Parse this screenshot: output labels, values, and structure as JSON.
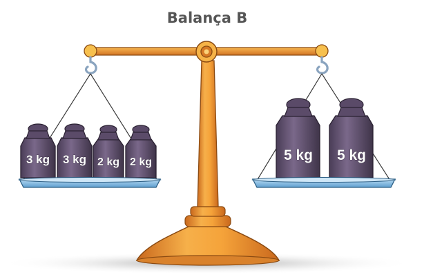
{
  "title": "Balança B",
  "left_pan": {
    "weights": [
      {
        "label": "3 kg"
      },
      {
        "label": "3 kg"
      },
      {
        "label": "2 kg"
      },
      {
        "label": "2 kg"
      }
    ]
  },
  "right_pan": {
    "weights": [
      {
        "label": "5 kg"
      },
      {
        "label": "5 kg"
      }
    ]
  },
  "colors": {
    "brass": "#f0a33a",
    "brass_dark": "#b5621a",
    "weight": "#6b5a78",
    "weight_dark": "#3e3349",
    "pan": "#8ec3e8",
    "title": "#555555"
  }
}
